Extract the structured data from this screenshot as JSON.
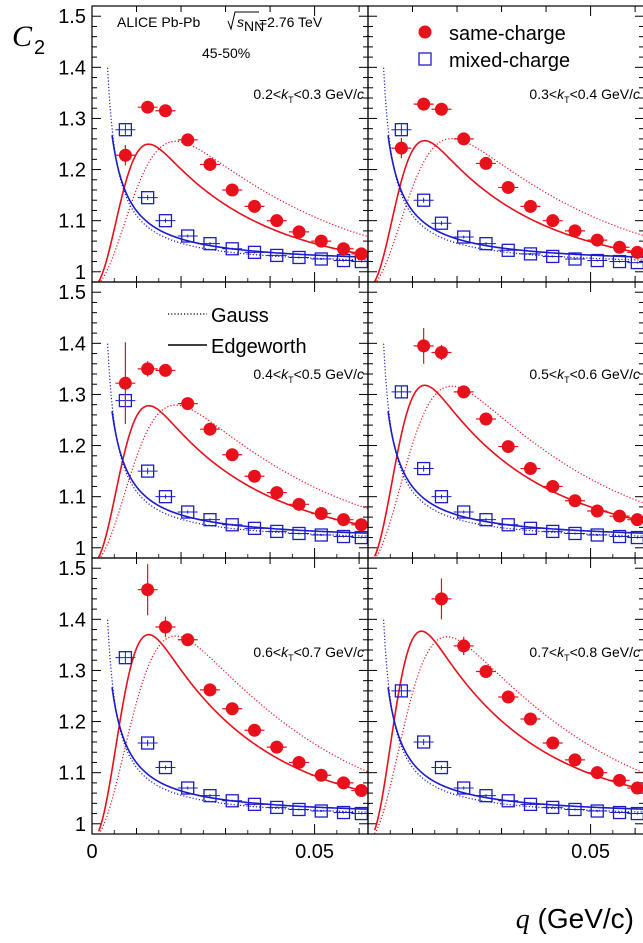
{
  "chart_data": {
    "type": "scatter",
    "experiment": "ALICE Pb-Pb",
    "energy_label": "=2.76 TeV",
    "energy_symbol": "s",
    "energy_subscript": "NN",
    "centrality": "45-50%",
    "ylabel_symbol": "C",
    "ylabel_sub": "2",
    "xlabel_symbol": "q",
    "xlabel_unit": " (GeV/c)",
    "xlim": [
      0,
      0.062
    ],
    "ylim": [
      0.98,
      1.52
    ],
    "x_ticks": [
      0,
      0.05
    ],
    "x_tick_labels": [
      "0",
      "0.05"
    ],
    "y_ticks": [
      1.0,
      1.1,
      1.2,
      1.3,
      1.4,
      1.5
    ],
    "y_tick_labels": [
      "1",
      "1.1",
      "1.2",
      "1.3",
      "1.4",
      "1.5"
    ],
    "legend_markers": [
      {
        "label": "same-charge",
        "color": "#e8101a",
        "marker": "filled-circle"
      },
      {
        "label": "mixed-charge",
        "color": "#1c1ccc",
        "marker": "open-square"
      }
    ],
    "legend_lines": [
      {
        "label": "Gauss",
        "style": "dotted"
      },
      {
        "label": "Edgeworth",
        "style": "solid"
      }
    ],
    "panels": [
      {
        "kt_label": "0.2<k_T<0.3 GeV/c",
        "same_charge": {
          "x": [
            0.0075,
            0.0125,
            0.0165,
            0.0215,
            0.0265,
            0.0315,
            0.0365,
            0.0415,
            0.0465,
            0.0515,
            0.0565,
            0.0605
          ],
          "y": [
            1.228,
            1.322,
            1.315,
            1.258,
            1.21,
            1.16,
            1.128,
            1.1,
            1.078,
            1.06,
            1.045,
            1.035
          ],
          "yerr": [
            0.02,
            0.012,
            0.008,
            0.006,
            0.005,
            0.004,
            0.004,
            0.004,
            0.004,
            0.003,
            0.003,
            0.003
          ]
        },
        "mixed_charge": {
          "x": [
            0.0075,
            0.0125,
            0.0165,
            0.0215,
            0.0265,
            0.0315,
            0.0365,
            0.0415,
            0.0465,
            0.0515,
            0.0565,
            0.0605
          ],
          "y": [
            1.278,
            1.145,
            1.1,
            1.07,
            1.055,
            1.045,
            1.038,
            1.032,
            1.028,
            1.025,
            1.022,
            1.02
          ],
          "yerr": [
            0.01,
            0.005,
            0.004,
            0.003,
            0.003,
            0.002,
            0.002,
            0.002,
            0.002,
            0.002,
            0.002,
            0.002
          ]
        }
      },
      {
        "kt_label": "0.3<k_T<0.4 GeV/c",
        "same_charge": {
          "x": [
            0.0075,
            0.0125,
            0.0165,
            0.0215,
            0.0265,
            0.0315,
            0.0365,
            0.0415,
            0.0465,
            0.0515,
            0.0565,
            0.0605
          ],
          "y": [
            1.242,
            1.328,
            1.318,
            1.26,
            1.212,
            1.165,
            1.128,
            1.1,
            1.08,
            1.062,
            1.048,
            1.038
          ],
          "yerr": [
            0.02,
            0.012,
            0.008,
            0.006,
            0.005,
            0.004,
            0.004,
            0.004,
            0.004,
            0.003,
            0.003,
            0.003
          ]
        },
        "mixed_charge": {
          "x": [
            0.0075,
            0.0125,
            0.0165,
            0.0215,
            0.0265,
            0.0315,
            0.0365,
            0.0415,
            0.0465,
            0.0515,
            0.0565,
            0.0605
          ],
          "y": [
            1.278,
            1.14,
            1.095,
            1.068,
            1.055,
            1.042,
            1.035,
            1.03,
            1.025,
            1.022,
            1.02,
            1.018
          ],
          "yerr": [
            0.01,
            0.005,
            0.004,
            0.003,
            0.003,
            0.002,
            0.002,
            0.002,
            0.002,
            0.002,
            0.002,
            0.002
          ]
        }
      },
      {
        "kt_label": "0.4<k_T<0.5 GeV/c",
        "same_charge": {
          "x": [
            0.0075,
            0.0125,
            0.0165,
            0.0215,
            0.0265,
            0.0315,
            0.0365,
            0.0415,
            0.0465,
            0.0515,
            0.0565,
            0.0605
          ],
          "y": [
            1.322,
            1.35,
            1.347,
            1.282,
            1.232,
            1.182,
            1.14,
            1.108,
            1.085,
            1.067,
            1.055,
            1.045
          ],
          "yerr": [
            0.08,
            0.015,
            0.01,
            0.008,
            0.006,
            0.005,
            0.004,
            0.004,
            0.004,
            0.003,
            0.003,
            0.003
          ]
        },
        "mixed_charge": {
          "x": [
            0.0075,
            0.0125,
            0.0165,
            0.0215,
            0.0265,
            0.0315,
            0.0365,
            0.0415,
            0.0465,
            0.0515,
            0.0565,
            0.0605
          ],
          "y": [
            1.288,
            1.15,
            1.1,
            1.07,
            1.055,
            1.045,
            1.038,
            1.032,
            1.028,
            1.025,
            1.022,
            1.02
          ],
          "yerr": [
            0.012,
            0.006,
            0.004,
            0.003,
            0.003,
            0.002,
            0.002,
            0.002,
            0.002,
            0.002,
            0.002,
            0.002
          ]
        }
      },
      {
        "kt_label": "0.5<k_T<0.6 GeV/c",
        "same_charge": {
          "x": [
            0.0125,
            0.0165,
            0.0215,
            0.0265,
            0.0315,
            0.0365,
            0.0415,
            0.0465,
            0.0515,
            0.0565,
            0.0605
          ],
          "y": [
            1.395,
            1.382,
            1.305,
            1.252,
            1.198,
            1.155,
            1.12,
            1.092,
            1.072,
            1.062,
            1.055
          ],
          "yerr": [
            0.035,
            0.015,
            0.01,
            0.007,
            0.006,
            0.005,
            0.004,
            0.004,
            0.004,
            0.003,
            0.003
          ]
        },
        "mixed_charge": {
          "x": [
            0.0075,
            0.0125,
            0.0165,
            0.0215,
            0.0265,
            0.0315,
            0.0365,
            0.0415,
            0.0465,
            0.0515,
            0.0565,
            0.0605
          ],
          "y": [
            1.305,
            1.155,
            1.1,
            1.07,
            1.055,
            1.045,
            1.038,
            1.032,
            1.028,
            1.025,
            1.022,
            1.02
          ],
          "yerr": [
            0.012,
            0.006,
            0.004,
            0.003,
            0.003,
            0.002,
            0.002,
            0.002,
            0.002,
            0.002,
            0.002,
            0.002
          ]
        }
      },
      {
        "kt_label": "0.6<k_T<0.7 GeV/c",
        "same_charge": {
          "x": [
            0.0125,
            0.0165,
            0.0215,
            0.0265,
            0.0315,
            0.0365,
            0.0415,
            0.0465,
            0.0515,
            0.0565,
            0.0605
          ],
          "y": [
            1.458,
            1.385,
            1.36,
            1.262,
            1.225,
            1.183,
            1.15,
            1.12,
            1.095,
            1.08,
            1.065
          ],
          "yerr": [
            0.05,
            0.02,
            0.012,
            0.008,
            0.006,
            0.005,
            0.005,
            0.004,
            0.004,
            0.003,
            0.003
          ]
        },
        "mixed_charge": {
          "x": [
            0.0075,
            0.0125,
            0.0165,
            0.0215,
            0.0265,
            0.0315,
            0.0365,
            0.0415,
            0.0465,
            0.0515,
            0.0565,
            0.0605
          ],
          "y": [
            1.325,
            1.158,
            1.11,
            1.07,
            1.055,
            1.045,
            1.038,
            1.032,
            1.028,
            1.025,
            1.022,
            1.02
          ],
          "yerr": [
            0.012,
            0.006,
            0.004,
            0.003,
            0.003,
            0.002,
            0.002,
            0.002,
            0.002,
            0.002,
            0.002,
            0.002
          ]
        }
      },
      {
        "kt_label": "0.7<k_T<0.8 GeV/c",
        "same_charge": {
          "x": [
            0.0165,
            0.0215,
            0.0265,
            0.0315,
            0.0365,
            0.0415,
            0.0465,
            0.0515,
            0.0565,
            0.0605
          ],
          "y": [
            1.44,
            1.348,
            1.298,
            1.248,
            1.205,
            1.158,
            1.125,
            1.1,
            1.085,
            1.07
          ],
          "yerr": [
            0.04,
            0.018,
            0.01,
            0.008,
            0.006,
            0.005,
            0.005,
            0.004,
            0.004,
            0.003
          ]
        },
        "mixed_charge": {
          "x": [
            0.0075,
            0.0125,
            0.0165,
            0.0215,
            0.0265,
            0.0315,
            0.0365,
            0.0415,
            0.0465,
            0.0515,
            0.0565,
            0.0605
          ],
          "y": [
            1.26,
            1.16,
            1.11,
            1.07,
            1.055,
            1.045,
            1.038,
            1.032,
            1.028,
            1.025,
            1.022,
            1.02
          ],
          "yerr": [
            0.012,
            0.006,
            0.004,
            0.003,
            0.003,
            0.002,
            0.002,
            0.002,
            0.002,
            0.002,
            0.002,
            0.002
          ]
        }
      }
    ]
  }
}
